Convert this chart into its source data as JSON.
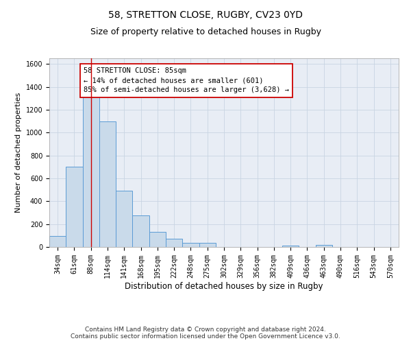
{
  "title": "58, STRETTON CLOSE, RUGBY, CV23 0YD",
  "subtitle": "Size of property relative to detached houses in Rugby",
  "xlabel": "Distribution of detached houses by size in Rugby",
  "ylabel": "Number of detached properties",
  "categories": [
    "34sqm",
    "61sqm",
    "88sqm",
    "114sqm",
    "141sqm",
    "168sqm",
    "195sqm",
    "222sqm",
    "248sqm",
    "275sqm",
    "302sqm",
    "329sqm",
    "356sqm",
    "382sqm",
    "409sqm",
    "436sqm",
    "463sqm",
    "490sqm",
    "516sqm",
    "543sqm",
    "570sqm"
  ],
  "values": [
    95,
    700,
    1330,
    1100,
    495,
    275,
    135,
    72,
    35,
    35,
    0,
    0,
    0,
    0,
    15,
    0,
    18,
    0,
    0,
    0,
    0
  ],
  "bar_color": "#c9daea",
  "bar_edge_color": "#5b9bd5",
  "grid_color": "#c8d4e3",
  "background_color": "#e8edf5",
  "vline_x": 2,
  "vline_color": "#cc0000",
  "annotation_text": "58 STRETTON CLOSE: 85sqm\n← 14% of detached houses are smaller (601)\n85% of semi-detached houses are larger (3,628) →",
  "annotation_box_color": "#ffffff",
  "annotation_box_edge": "#cc0000",
  "ylim": [
    0,
    1650
  ],
  "yticks": [
    0,
    200,
    400,
    600,
    800,
    1000,
    1200,
    1400,
    1600
  ],
  "footer": "Contains HM Land Registry data © Crown copyright and database right 2024.\nContains public sector information licensed under the Open Government Licence v3.0.",
  "title_fontsize": 10,
  "subtitle_fontsize": 9,
  "ylabel_fontsize": 8,
  "xlabel_fontsize": 8.5,
  "tick_fontsize": 7,
  "annotation_fontsize": 7.5,
  "footer_fontsize": 6.5
}
